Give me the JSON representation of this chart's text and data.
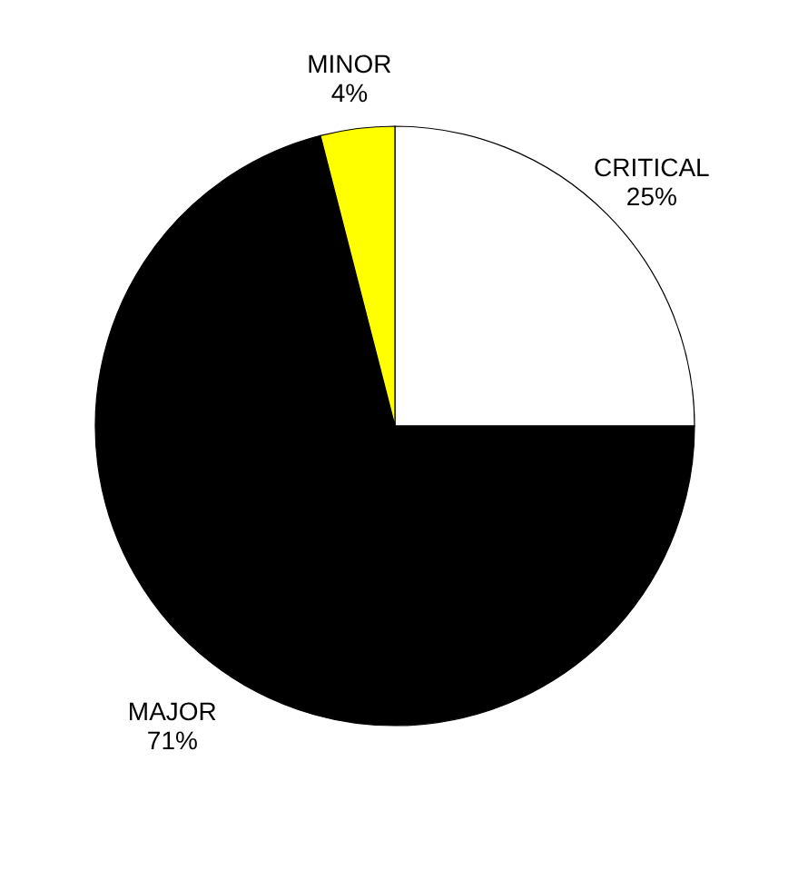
{
  "chart_data": {
    "type": "pie",
    "categories": [
      "CRITICAL",
      "MAJOR",
      "MINOR"
    ],
    "values": [
      25,
      71,
      4
    ],
    "colors": [
      "#ffffff",
      "#000000",
      "#ffff00"
    ],
    "value_labels": [
      "25%",
      "71%",
      "4%"
    ],
    "legend": false
  }
}
